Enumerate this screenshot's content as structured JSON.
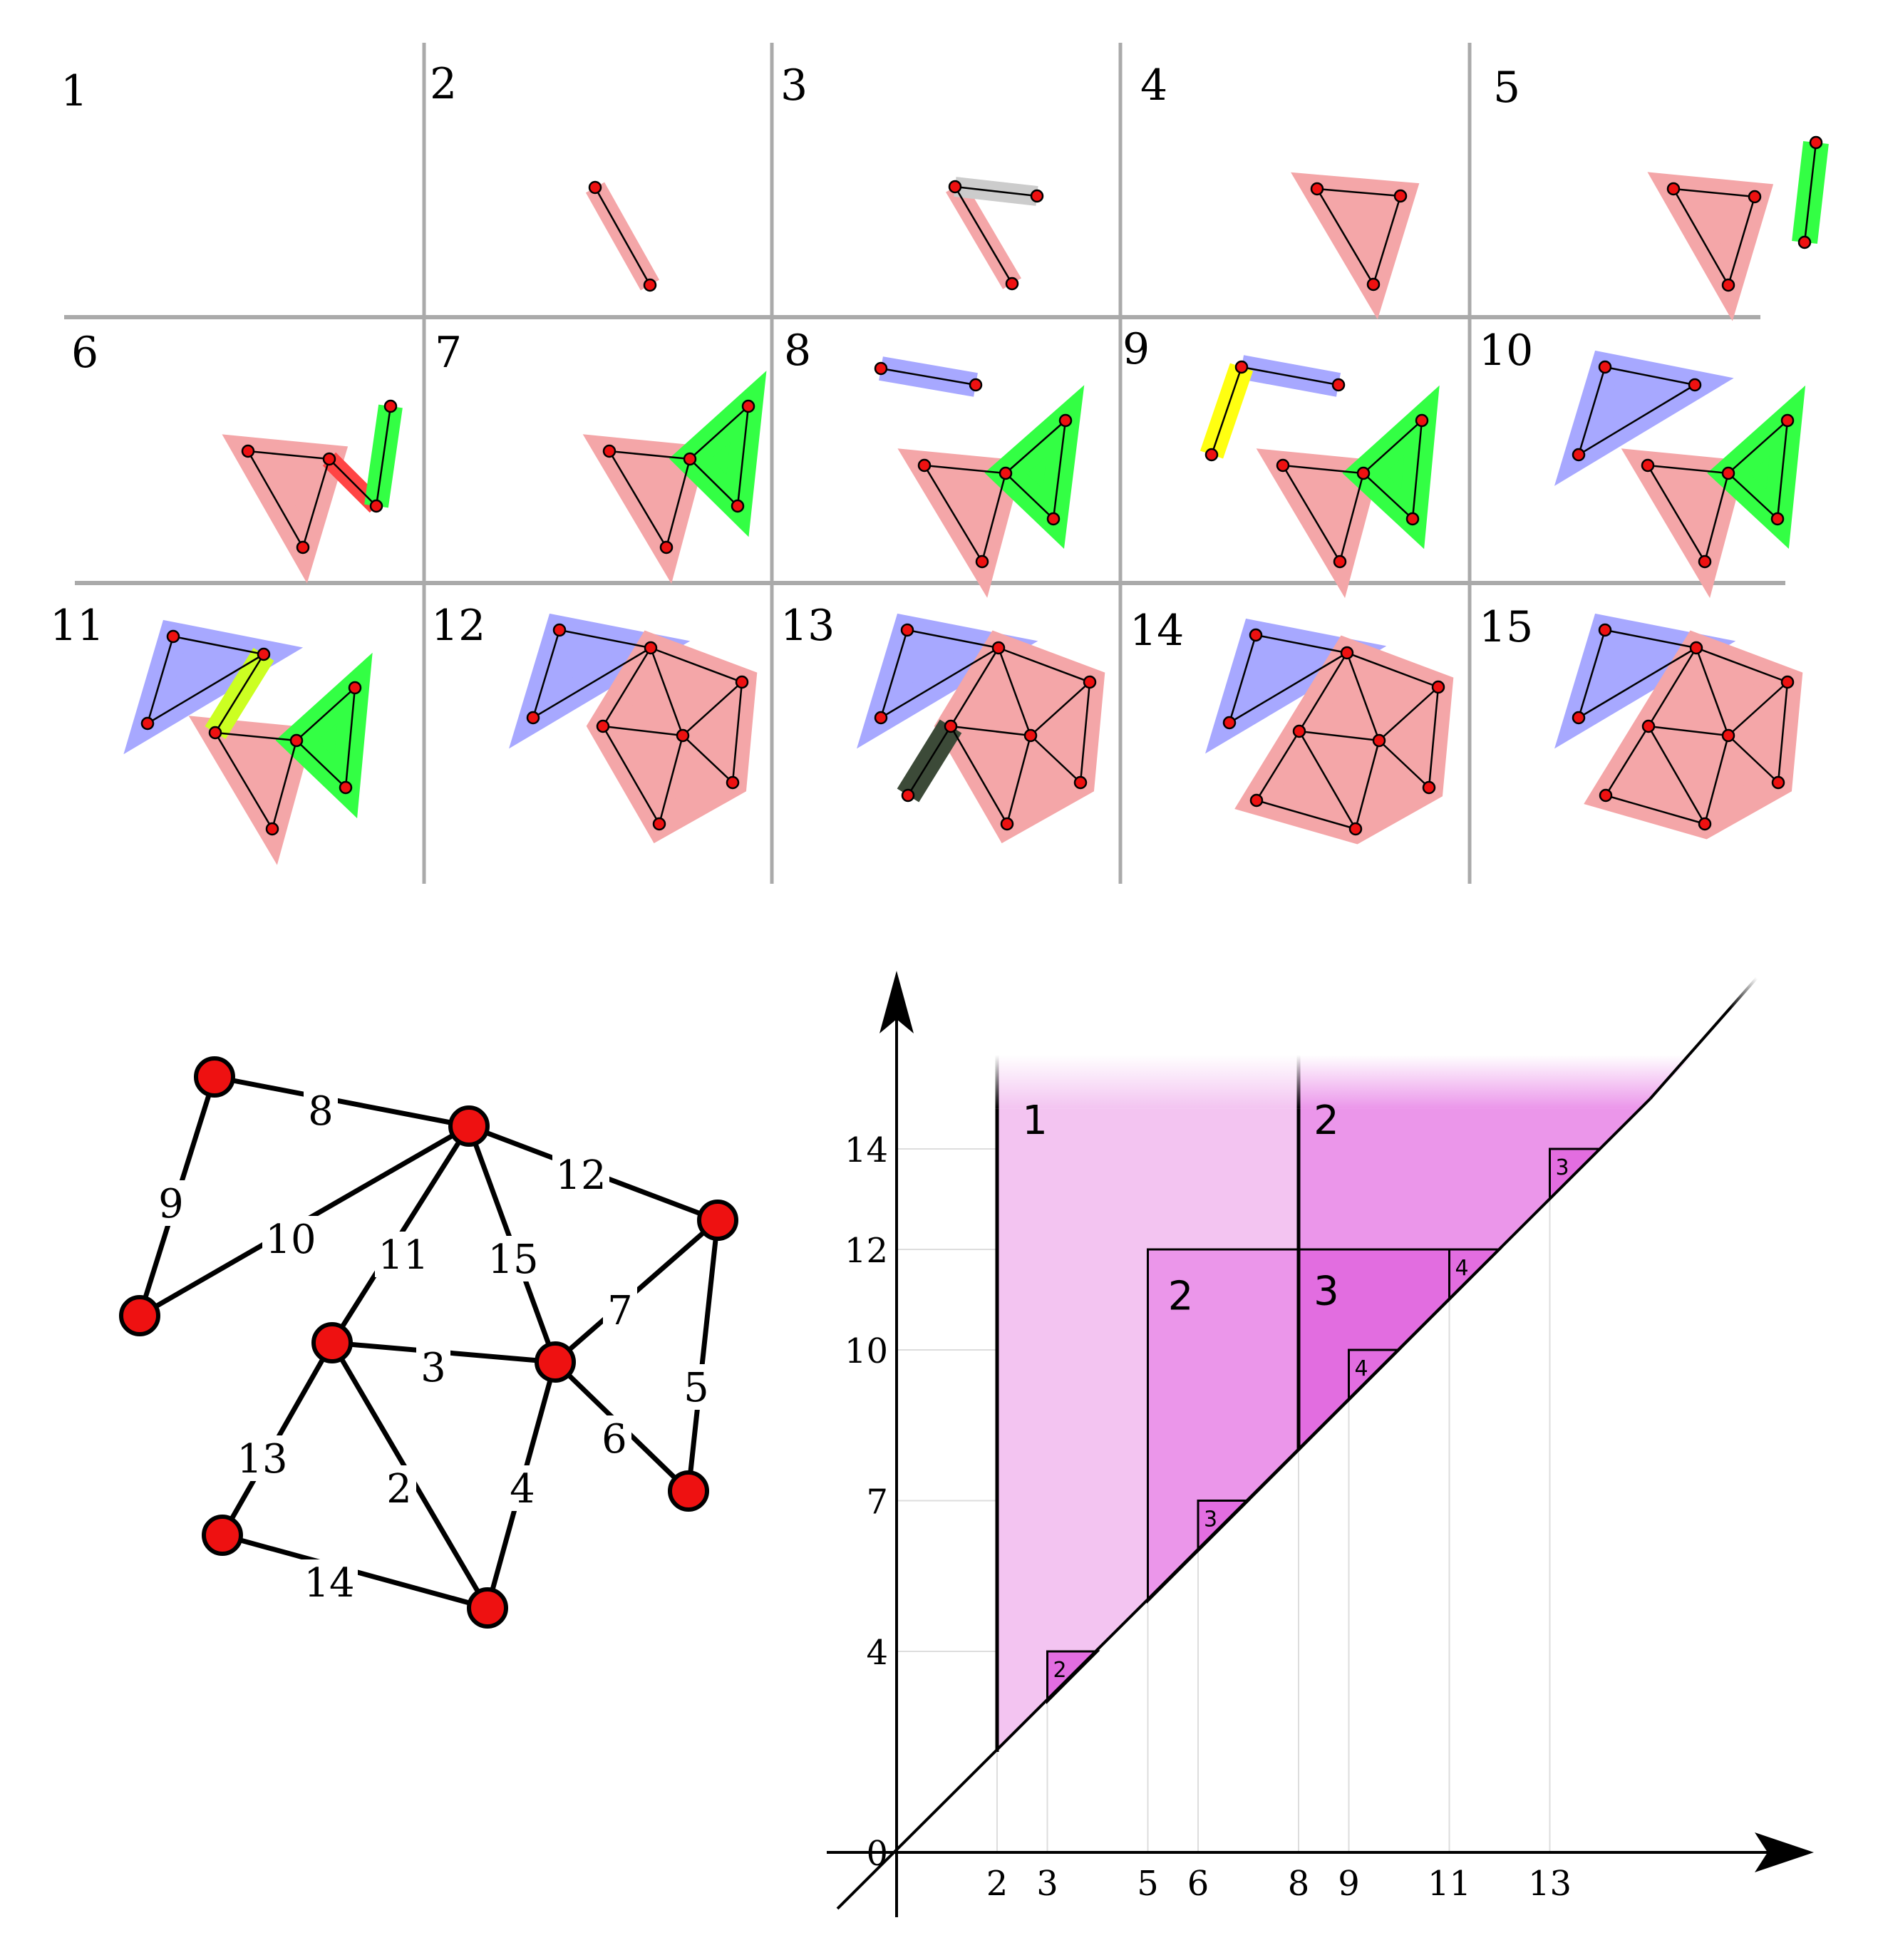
{
  "panels": {
    "labels": [
      "1",
      "2",
      "3",
      "4",
      "5",
      "6",
      "7",
      "8",
      "9",
      "10",
      "11",
      "12",
      "13",
      "14",
      "15"
    ]
  },
  "graph": {
    "edge_labels": [
      "2",
      "3",
      "4",
      "5",
      "6",
      "7",
      "8",
      "9",
      "10",
      "11",
      "12",
      "13",
      "14",
      "15"
    ]
  },
  "diagram": {
    "x_ticks": [
      "2",
      "3",
      "5",
      "6",
      "8",
      "9",
      "11",
      "13"
    ],
    "y_ticks": [
      "0",
      "4",
      "7",
      "10",
      "12",
      "14"
    ],
    "region_labels": [
      "1",
      "2",
      "2",
      "3"
    ],
    "box_labels": [
      "2",
      "3",
      "4",
      "4",
      "3"
    ]
  },
  "colors": {
    "vertex_fill": "#ee1111",
    "comp_red": "#f4a6a8",
    "comp_blue": "#a7a8ff",
    "comp_green": "#33ff44",
    "comp_yellow": "#ffff11",
    "comp_grey": "#cccccc",
    "comp_dark": "#3c4a38",
    "comp_red_strong": "#ff4444",
    "comp_lime": "#ccff22",
    "pers_light": "#f3c4f1",
    "pers_mid": "#eb96ea",
    "pers_dark": "#e26de0",
    "grid": "#aaaaaa"
  }
}
